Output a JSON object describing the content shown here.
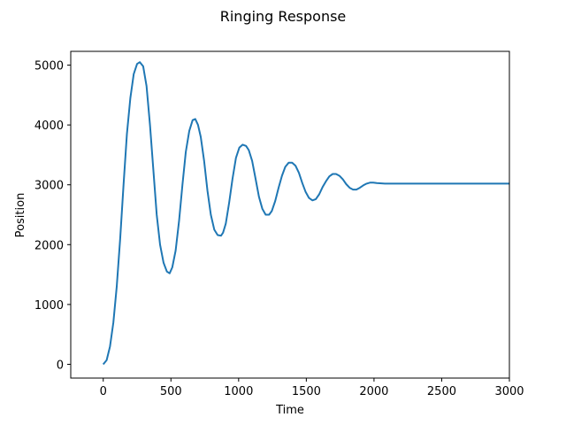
{
  "chart_data": {
    "type": "line",
    "title": "Ringing Response",
    "xlabel": "Time",
    "ylabel": "Position",
    "xlim": [
      -240,
      3000
    ],
    "ylim": [
      -230,
      5230
    ],
    "xticks": [
      0,
      500,
      1000,
      1500,
      2000,
      2500,
      3000
    ],
    "yticks": [
      0,
      1000,
      2000,
      3000,
      4000,
      5000
    ],
    "grid": false,
    "series": [
      {
        "color": "#1f77b4",
        "x": [
          0,
          25,
          50,
          75,
          100,
          125,
          150,
          175,
          200,
          225,
          250,
          270,
          295,
          320,
          345,
          370,
          395,
          420,
          445,
          470,
          490,
          510,
          535,
          560,
          585,
          610,
          635,
          660,
          680,
          700,
          720,
          745,
          770,
          795,
          820,
          845,
          870,
          885,
          905,
          930,
          955,
          980,
          1005,
          1030,
          1055,
          1075,
          1100,
          1125,
          1150,
          1175,
          1200,
          1225,
          1245,
          1270,
          1295,
          1320,
          1345,
          1370,
          1395,
          1420,
          1445,
          1470,
          1495,
          1520,
          1545,
          1570,
          1595,
          1620,
          1645,
          1670,
          1695,
          1720,
          1745,
          1770,
          1795,
          1820,
          1845,
          1870,
          1895,
          1920,
          1945,
          1970,
          1995,
          2020,
          2045,
          2080,
          2150,
          2250,
          2400,
          2600,
          2800,
          3000
        ],
        "y": [
          0,
          70,
          300,
          700,
          1300,
          2100,
          3000,
          3850,
          4450,
          4850,
          5020,
          5050,
          4980,
          4650,
          4000,
          3250,
          2500,
          2000,
          1700,
          1550,
          1520,
          1620,
          1900,
          2400,
          3000,
          3550,
          3900,
          4080,
          4100,
          4000,
          3800,
          3400,
          2900,
          2500,
          2250,
          2160,
          2150,
          2200,
          2350,
          2700,
          3100,
          3450,
          3620,
          3670,
          3650,
          3580,
          3400,
          3100,
          2800,
          2600,
          2500,
          2500,
          2560,
          2730,
          2950,
          3150,
          3300,
          3370,
          3370,
          3320,
          3200,
          3030,
          2880,
          2780,
          2740,
          2760,
          2840,
          2960,
          3060,
          3140,
          3180,
          3180,
          3150,
          3090,
          3010,
          2950,
          2920,
          2920,
          2950,
          2990,
          3020,
          3035,
          3035,
          3030,
          3025,
          3020,
          3020,
          3020,
          3020,
          3020,
          3020,
          3020
        ]
      }
    ]
  }
}
